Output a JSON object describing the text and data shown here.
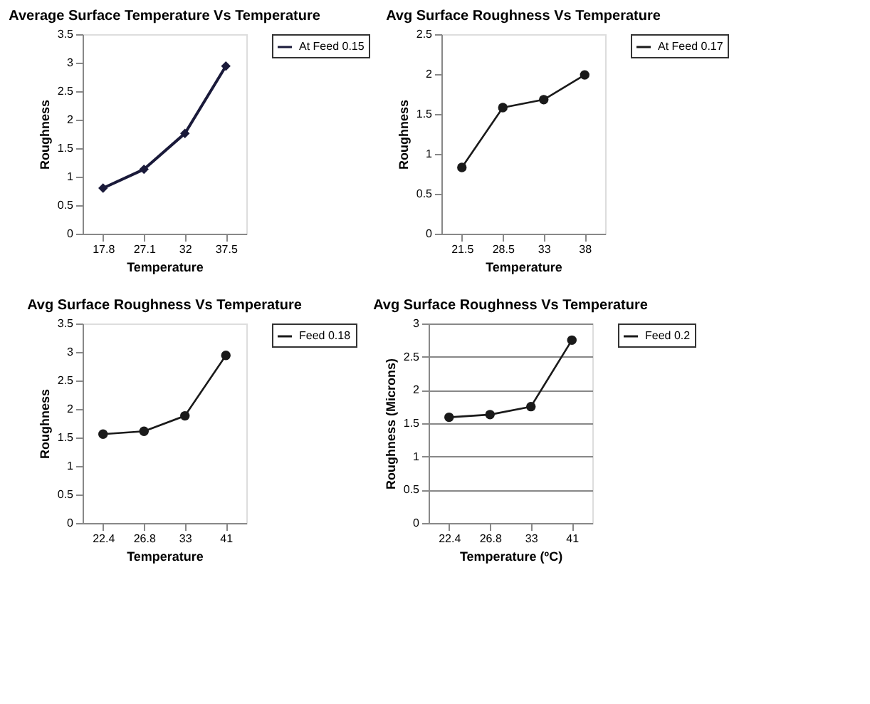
{
  "chart_data": [
    {
      "type": "line",
      "title": "Average Surface Temperature Vs Temperature",
      "xlabel": "Temperature",
      "ylabel": "Roughness",
      "categories": [
        "17.8",
        "27.1",
        "32",
        "37.5"
      ],
      "series": [
        {
          "name": "At Feed 0.15",
          "color": "#1a1a3a",
          "values": [
            0.8,
            1.13,
            1.76,
            2.94
          ]
        }
      ],
      "ylim": [
        0,
        3.5
      ],
      "yticks": [
        0,
        0.5,
        1,
        1.5,
        2,
        2.5,
        3,
        3.5
      ],
      "grid": false,
      "legend": "right",
      "marker": "diamond"
    },
    {
      "type": "line",
      "title": "Avg Surface Roughness Vs Temperature",
      "xlabel": "Temperature",
      "ylabel": "Roughness",
      "categories": [
        "21.5",
        "28.5",
        "33",
        "38"
      ],
      "series": [
        {
          "name": "At Feed 0.17",
          "color": "#1a1a1a",
          "values": [
            0.83,
            1.58,
            1.68,
            1.99
          ]
        }
      ],
      "ylim": [
        0,
        2.5
      ],
      "yticks": [
        0,
        0.5,
        1,
        1.5,
        2,
        2.5
      ],
      "grid": false,
      "legend": "right",
      "marker": "circle"
    },
    {
      "type": "line",
      "title": "Avg Surface Roughness Vs Temperature",
      "xlabel": "Temperature",
      "ylabel": "Roughness",
      "categories": [
        "22.4",
        "26.8",
        "33",
        "41"
      ],
      "series": [
        {
          "name": "Feed 0.18",
          "color": "#1a1a1a",
          "values": [
            1.56,
            1.61,
            1.88,
            2.94
          ]
        }
      ],
      "ylim": [
        0,
        3.5
      ],
      "yticks": [
        0,
        0.5,
        1,
        1.5,
        2,
        2.5,
        3,
        3.5
      ],
      "grid": false,
      "legend": "right",
      "marker": "circle"
    },
    {
      "type": "line",
      "title": "Avg Surface Roughness Vs Temperature",
      "xlabel": "Temperature (ºC)",
      "ylabel": "Roughness (Microns)",
      "categories": [
        "22.4",
        "26.8",
        "33",
        "41"
      ],
      "series": [
        {
          "name": "Feed 0.2",
          "color": "#1a1a1a",
          "values": [
            1.59,
            1.63,
            1.75,
            2.75
          ]
        }
      ],
      "ylim": [
        0,
        3
      ],
      "yticks": [
        0,
        0.5,
        1,
        1.5,
        2,
        2.5,
        3
      ],
      "grid": "y",
      "legend": "right",
      "marker": "circle"
    }
  ]
}
